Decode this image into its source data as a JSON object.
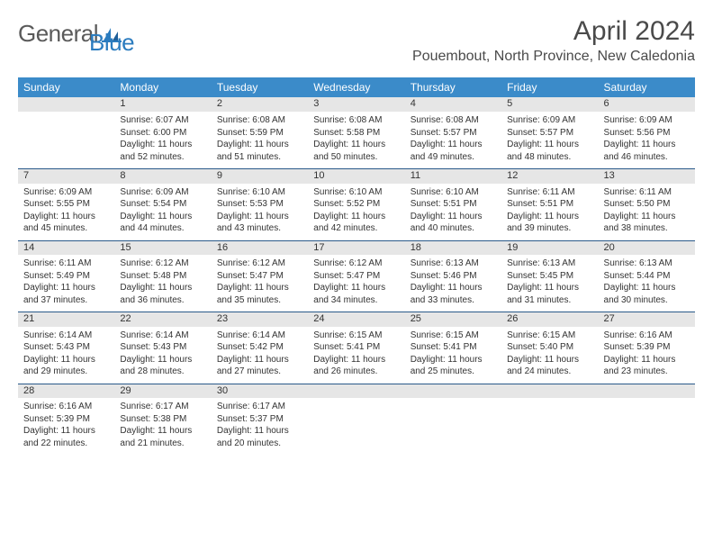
{
  "logo": {
    "text1": "General",
    "text2": "Blue"
  },
  "title": "April 2024",
  "location": "Pouembout, North Province, New Caledonia",
  "colors": {
    "header_bg": "#3b8bc9",
    "header_text": "#ffffff",
    "daynum_bg": "#e6e6e6",
    "border": "#2a5a8a",
    "text": "#333333",
    "logo_gray": "#5a5a5a",
    "logo_blue": "#2b7cbf"
  },
  "weekdays": [
    "Sunday",
    "Monday",
    "Tuesday",
    "Wednesday",
    "Thursday",
    "Friday",
    "Saturday"
  ],
  "weeks": [
    [
      null,
      {
        "n": "1",
        "sr": "6:07 AM",
        "ss": "6:00 PM",
        "dl": "11 hours and 52 minutes."
      },
      {
        "n": "2",
        "sr": "6:08 AM",
        "ss": "5:59 PM",
        "dl": "11 hours and 51 minutes."
      },
      {
        "n": "3",
        "sr": "6:08 AM",
        "ss": "5:58 PM",
        "dl": "11 hours and 50 minutes."
      },
      {
        "n": "4",
        "sr": "6:08 AM",
        "ss": "5:57 PM",
        "dl": "11 hours and 49 minutes."
      },
      {
        "n": "5",
        "sr": "6:09 AM",
        "ss": "5:57 PM",
        "dl": "11 hours and 48 minutes."
      },
      {
        "n": "6",
        "sr": "6:09 AM",
        "ss": "5:56 PM",
        "dl": "11 hours and 46 minutes."
      }
    ],
    [
      {
        "n": "7",
        "sr": "6:09 AM",
        "ss": "5:55 PM",
        "dl": "11 hours and 45 minutes."
      },
      {
        "n": "8",
        "sr": "6:09 AM",
        "ss": "5:54 PM",
        "dl": "11 hours and 44 minutes."
      },
      {
        "n": "9",
        "sr": "6:10 AM",
        "ss": "5:53 PM",
        "dl": "11 hours and 43 minutes."
      },
      {
        "n": "10",
        "sr": "6:10 AM",
        "ss": "5:52 PM",
        "dl": "11 hours and 42 minutes."
      },
      {
        "n": "11",
        "sr": "6:10 AM",
        "ss": "5:51 PM",
        "dl": "11 hours and 40 minutes."
      },
      {
        "n": "12",
        "sr": "6:11 AM",
        "ss": "5:51 PM",
        "dl": "11 hours and 39 minutes."
      },
      {
        "n": "13",
        "sr": "6:11 AM",
        "ss": "5:50 PM",
        "dl": "11 hours and 38 minutes."
      }
    ],
    [
      {
        "n": "14",
        "sr": "6:11 AM",
        "ss": "5:49 PM",
        "dl": "11 hours and 37 minutes."
      },
      {
        "n": "15",
        "sr": "6:12 AM",
        "ss": "5:48 PM",
        "dl": "11 hours and 36 minutes."
      },
      {
        "n": "16",
        "sr": "6:12 AM",
        "ss": "5:47 PM",
        "dl": "11 hours and 35 minutes."
      },
      {
        "n": "17",
        "sr": "6:12 AM",
        "ss": "5:47 PM",
        "dl": "11 hours and 34 minutes."
      },
      {
        "n": "18",
        "sr": "6:13 AM",
        "ss": "5:46 PM",
        "dl": "11 hours and 33 minutes."
      },
      {
        "n": "19",
        "sr": "6:13 AM",
        "ss": "5:45 PM",
        "dl": "11 hours and 31 minutes."
      },
      {
        "n": "20",
        "sr": "6:13 AM",
        "ss": "5:44 PM",
        "dl": "11 hours and 30 minutes."
      }
    ],
    [
      {
        "n": "21",
        "sr": "6:14 AM",
        "ss": "5:43 PM",
        "dl": "11 hours and 29 minutes."
      },
      {
        "n": "22",
        "sr": "6:14 AM",
        "ss": "5:43 PM",
        "dl": "11 hours and 28 minutes."
      },
      {
        "n": "23",
        "sr": "6:14 AM",
        "ss": "5:42 PM",
        "dl": "11 hours and 27 minutes."
      },
      {
        "n": "24",
        "sr": "6:15 AM",
        "ss": "5:41 PM",
        "dl": "11 hours and 26 minutes."
      },
      {
        "n": "25",
        "sr": "6:15 AM",
        "ss": "5:41 PM",
        "dl": "11 hours and 25 minutes."
      },
      {
        "n": "26",
        "sr": "6:15 AM",
        "ss": "5:40 PM",
        "dl": "11 hours and 24 minutes."
      },
      {
        "n": "27",
        "sr": "6:16 AM",
        "ss": "5:39 PM",
        "dl": "11 hours and 23 minutes."
      }
    ],
    [
      {
        "n": "28",
        "sr": "6:16 AM",
        "ss": "5:39 PM",
        "dl": "11 hours and 22 minutes."
      },
      {
        "n": "29",
        "sr": "6:17 AM",
        "ss": "5:38 PM",
        "dl": "11 hours and 21 minutes."
      },
      {
        "n": "30",
        "sr": "6:17 AM",
        "ss": "5:37 PM",
        "dl": "11 hours and 20 minutes."
      },
      null,
      null,
      null,
      null
    ]
  ],
  "labels": {
    "sunrise": "Sunrise:",
    "sunset": "Sunset:",
    "daylight": "Daylight:"
  }
}
